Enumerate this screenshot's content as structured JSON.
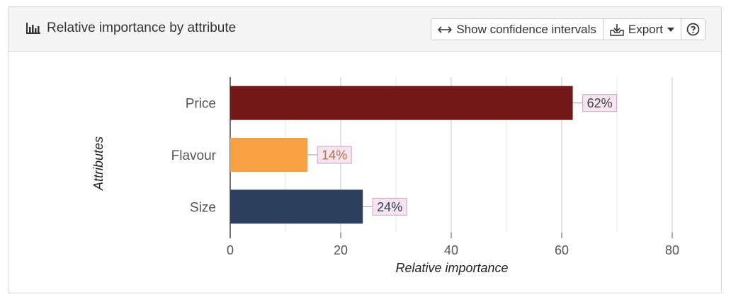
{
  "header": {
    "title": "Relative importance by attribute",
    "title_icon": "bar-chart-icon",
    "buttons": {
      "confidence_label": "Show confidence intervals",
      "confidence_icon": "left-right-arrow-icon",
      "export_label": "Export",
      "export_icon": "download-tray-icon",
      "help_icon": "help-circle-icon"
    }
  },
  "chart_data": {
    "type": "bar",
    "orientation": "horizontal",
    "categories": [
      "Price",
      "Flavour",
      "Size"
    ],
    "values": [
      62,
      14,
      24
    ],
    "data_labels": [
      "62%",
      "14%",
      "24%"
    ],
    "colors": [
      "#731919",
      "#f9a043",
      "#2c3e5c"
    ],
    "label_colors": [
      "#444444",
      "#b8743a",
      "#2c3e5c"
    ],
    "xlabel": "Relative importance",
    "ylabel": "Attributes",
    "xlim": [
      0,
      80
    ],
    "xticks": [
      0,
      20,
      40,
      60,
      80
    ],
    "grid": true,
    "legend": "none"
  }
}
